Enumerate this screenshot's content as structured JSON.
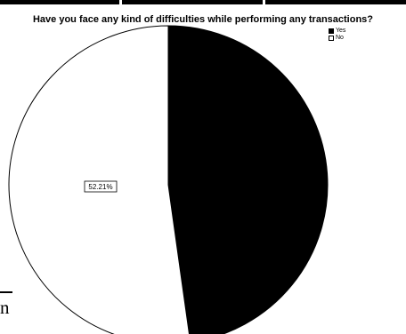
{
  "chart_data": {
    "type": "pie",
    "title": "Have you face any kind of difficulties while performing any transactions?",
    "slices": [
      {
        "label": "Yes",
        "value": 47.79,
        "color": "#000000"
      },
      {
        "label": "No",
        "value": 52.21,
        "color": "#ffffff"
      }
    ],
    "data_labels": [
      "52.21%"
    ],
    "legend": {
      "position": "top-right",
      "items": [
        "Yes",
        "No"
      ]
    },
    "start_angle_deg": 0,
    "direction": "clockwise"
  },
  "page_fragment": {
    "text": "n"
  }
}
